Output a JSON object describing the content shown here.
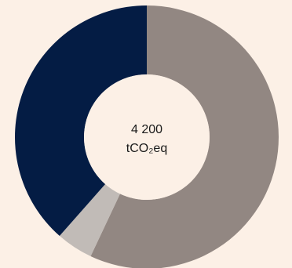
{
  "chart_data": {
    "type": "pie",
    "variant": "donut",
    "center_label": {
      "value": "4 200",
      "unit": "tCO₂eq"
    },
    "slices": [
      {
        "value": 57.0,
        "color": "#928782"
      },
      {
        "value": 4.5,
        "color": "#c1bbb7"
      },
      {
        "value": 38.5,
        "color": "#041c44"
      }
    ],
    "start_angle_deg": 0,
    "direction": "clockwise"
  },
  "colors": {
    "background": "#fcf0e6",
    "hole": "#fcf0e6"
  }
}
